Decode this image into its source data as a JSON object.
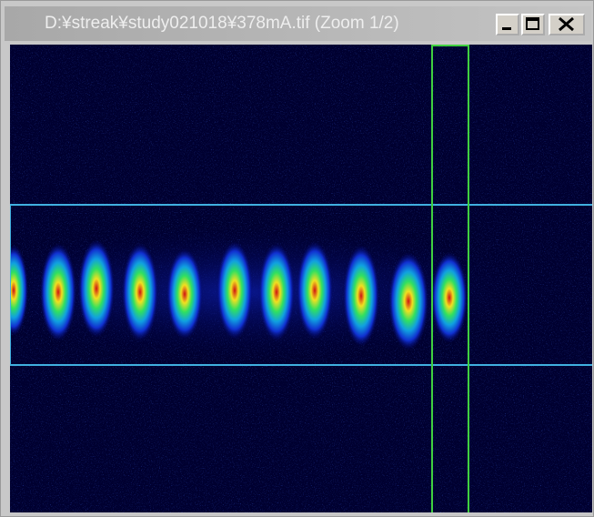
{
  "window": {
    "title": "D:¥streak¥study021018¥378mA.tif (Zoom 1/2)"
  }
}
